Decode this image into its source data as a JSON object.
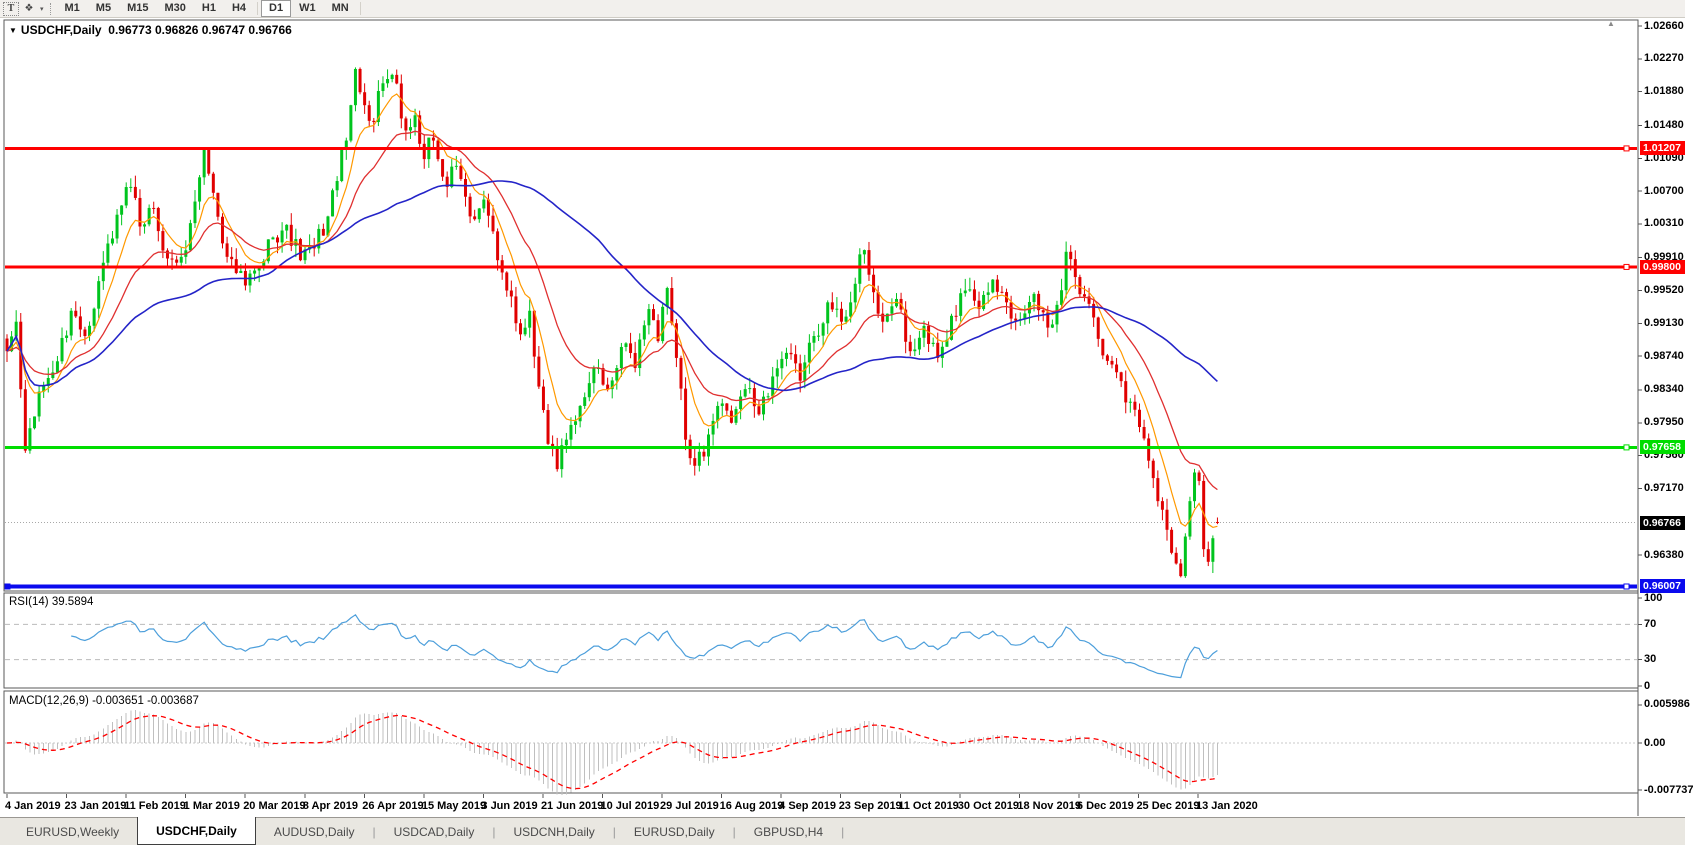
{
  "toolbar": {
    "tools": [
      {
        "name": "text-tool",
        "glyph": "T"
      },
      {
        "name": "styles-tool",
        "glyph": "❖"
      }
    ],
    "timeframes": [
      {
        "label": "M1",
        "active": false
      },
      {
        "label": "M5",
        "active": false
      },
      {
        "label": "M15",
        "active": false
      },
      {
        "label": "M30",
        "active": false
      },
      {
        "label": "H1",
        "active": false
      },
      {
        "label": "H4",
        "active": false
      },
      {
        "label": "D1",
        "active": true
      },
      {
        "label": "W1",
        "active": false
      },
      {
        "label": "MN",
        "active": false
      }
    ]
  },
  "chart": {
    "title_symbol": "USDCHF,Daily",
    "title_ohlc": "0.96773 0.96826 0.96747 0.96766",
    "collapse_glyph": "▼",
    "scroll_up_glyph": "▲"
  },
  "indicators": {
    "rsi_label": "RSI(14) 39.5894",
    "macd_label": "MACD(12,26,9) -0.003651 -0.003687"
  },
  "price_axis": {
    "ticks": [
      {
        "label": "1.02660",
        "value": 1.0266
      },
      {
        "label": "1.02270",
        "value": 1.0227
      },
      {
        "label": "1.01880",
        "value": 1.0188
      },
      {
        "label": "1.01480",
        "value": 1.0148
      },
      {
        "label": "1.01090",
        "value": 1.0109
      },
      {
        "label": "1.00700",
        "value": 1.007
      },
      {
        "label": "1.00310",
        "value": 1.0031
      },
      {
        "label": "0.99910",
        "value": 0.9991
      },
      {
        "label": "0.99520",
        "value": 0.9952
      },
      {
        "label": "0.99130",
        "value": 0.9913
      },
      {
        "label": "0.98740",
        "value": 0.9874
      },
      {
        "label": "0.98340",
        "value": 0.9834
      },
      {
        "label": "0.97950",
        "value": 0.9795
      },
      {
        "label": "0.97560",
        "value": 0.9756
      },
      {
        "label": "0.97170",
        "value": 0.9717
      },
      {
        "label": "0.96380",
        "value": 0.9638
      }
    ],
    "special_labels": [
      {
        "label": "1.01207",
        "value": 1.01207,
        "bg": "#FF0000",
        "fg": "#FFFFFF"
      },
      {
        "label": "0.99800",
        "value": 0.998,
        "bg": "#FF0000",
        "fg": "#FFFFFF"
      },
      {
        "label": "0.97658",
        "value": 0.97658,
        "bg": "#00DD00",
        "fg": "#FFFFFF"
      },
      {
        "label": "0.96766",
        "value": 0.96766,
        "bg": "#000000",
        "fg": "#FFFFFF"
      },
      {
        "label": "0.96007",
        "value": 0.96007,
        "bg": "#0A0AEE",
        "fg": "#FFFFFF"
      }
    ]
  },
  "rsi_axis": [
    {
      "label": "100",
      "value": 100
    },
    {
      "label": "70",
      "value": 70
    },
    {
      "label": "30",
      "value": 30
    },
    {
      "label": "0",
      "value": 0
    }
  ],
  "macd_axis": [
    {
      "label": "0.005986",
      "value": 0.005986
    },
    {
      "label": "0.00",
      "value": 0
    },
    {
      "label": "-0.007737",
      "value": -0.007737
    }
  ],
  "dates": [
    "4 Jan 2019",
    "23 Jan 2019",
    "11 Feb 2019",
    "1 Mar 2019",
    "20 Mar 2019",
    "8 Apr 2019",
    "26 Apr 2019",
    "15 May 2019",
    "3 Jun 2019",
    "21 Jun 2019",
    "10 Jul 2019",
    "29 Jul 2019",
    "16 Aug 2019",
    "4 Sep 2019",
    "23 Sep 2019",
    "11 Oct 2019",
    "30 Oct 2019",
    "18 Nov 2019",
    "6 Dec 2019",
    "25 Dec 2019",
    "13 Jan 2020"
  ],
  "tabs": [
    {
      "label": "EURUSD,Weekly",
      "active": false
    },
    {
      "label": "USDCHF,Daily",
      "active": true
    },
    {
      "label": "AUDUSD,Daily",
      "active": false
    },
    {
      "label": "USDCAD,Daily",
      "active": false
    },
    {
      "label": "USDCNH,Daily",
      "active": false
    },
    {
      "label": "EURUSD,Daily",
      "active": false
    },
    {
      "label": "GBPUSD,H4",
      "active": false
    }
  ],
  "chart_data": {
    "type": "candlestick",
    "symbol": "USDCHF",
    "timeframe": "Daily",
    "current_bar_ohlc": {
      "open": 0.96773,
      "high": 0.96826,
      "low": 0.96747,
      "close": 0.96766
    },
    "bars": 265,
    "y_axis_range": {
      "max": 1.0273,
      "min": 0.9595
    },
    "anchors_close": [
      [
        0,
        0.988
      ],
      [
        2,
        0.9915
      ],
      [
        4,
        0.9762
      ],
      [
        7,
        0.9832
      ],
      [
        11,
        0.9868
      ],
      [
        14,
        0.9928
      ],
      [
        17,
        0.9898
      ],
      [
        21,
        0.9985
      ],
      [
        24,
        1.0042
      ],
      [
        27,
        1.0075
      ],
      [
        29,
        1.0028
      ],
      [
        32,
        1.005
      ],
      [
        35,
        0.999
      ],
      [
        38,
        0.9992
      ],
      [
        40,
        1.0032
      ],
      [
        43,
        1.012
      ],
      [
        45,
        1.0068
      ],
      [
        48,
        0.9992
      ],
      [
        52,
        0.9958
      ],
      [
        55,
        0.998
      ],
      [
        58,
        1.0015
      ],
      [
        61,
        1.003
      ],
      [
        64,
        0.9988
      ],
      [
        67,
        1.0002
      ],
      [
        70,
        1.004
      ],
      [
        72,
        1.0082
      ],
      [
        74,
        1.013
      ],
      [
        76,
        1.0215
      ],
      [
        78,
        1.0172
      ],
      [
        80,
        1.0152
      ],
      [
        82,
        1.0198
      ],
      [
        84,
        1.0208
      ],
      [
        87,
        1.0142
      ],
      [
        89,
        1.016
      ],
      [
        91,
        1.0108
      ],
      [
        93,
        1.013
      ],
      [
        96,
        1.0075
      ],
      [
        98,
        1.01
      ],
      [
        101,
        1.004
      ],
      [
        104,
        1.006
      ],
      [
        107,
        0.9988
      ],
      [
        110,
        0.9945
      ],
      [
        112,
        0.99
      ],
      [
        114,
        0.9928
      ],
      [
        116,
        0.9838
      ],
      [
        118,
        0.977
      ],
      [
        120,
        0.974
      ],
      [
        122,
        0.9775
      ],
      [
        125,
        0.9815
      ],
      [
        128,
        0.986
      ],
      [
        131,
        0.9835
      ],
      [
        134,
        0.9885
      ],
      [
        137,
        0.986
      ],
      [
        140,
        0.993
      ],
      [
        142,
        0.9892
      ],
      [
        144,
        0.9955
      ],
      [
        146,
        0.9872
      ],
      [
        148,
        0.9775
      ],
      [
        150,
        0.9744
      ],
      [
        152,
        0.9755
      ],
      [
        155,
        0.9815
      ],
      [
        158,
        0.9795
      ],
      [
        161,
        0.9835
      ],
      [
        164,
        0.9805
      ],
      [
        167,
        0.985
      ],
      [
        170,
        0.9878
      ],
      [
        173,
        0.9845
      ],
      [
        176,
        0.9898
      ],
      [
        179,
        0.9938
      ],
      [
        182,
        0.9915
      ],
      [
        185,
        0.996
      ],
      [
        187,
        1.0
      ],
      [
        189,
        0.995
      ],
      [
        191,
        0.9915
      ],
      [
        194,
        0.9942
      ],
      [
        197,
        0.988
      ],
      [
        200,
        0.991
      ],
      [
        203,
        0.9872
      ],
      [
        206,
        0.9922
      ],
      [
        209,
        0.9952
      ],
      [
        212,
        0.993
      ],
      [
        215,
        0.9965
      ],
      [
        218,
        0.9938
      ],
      [
        221,
        0.9918
      ],
      [
        224,
        0.9948
      ],
      [
        227,
        0.9908
      ],
      [
        229,
        0.9935
      ],
      [
        231,
        0.9998
      ],
      [
        233,
        0.9968
      ],
      [
        235,
        0.9945
      ],
      [
        237,
        0.992
      ],
      [
        239,
        0.9875
      ],
      [
        242,
        0.9855
      ],
      [
        245,
        0.982
      ],
      [
        247,
        0.979
      ],
      [
        249,
        0.975
      ],
      [
        251,
        0.9702
      ],
      [
        253,
        0.9668
      ],
      [
        255,
        0.9628
      ],
      [
        256,
        0.9613
      ],
      [
        257,
        0.966
      ],
      [
        258,
        0.9702
      ],
      [
        259,
        0.9736
      ],
      [
        260,
        0.9726
      ],
      [
        261,
        0.9645
      ],
      [
        262,
        0.963
      ],
      [
        263,
        0.9658
      ],
      [
        264,
        0.96766
      ]
    ],
    "hlines": [
      {
        "value": 1.01207,
        "color": "#FF0000",
        "width": 3
      },
      {
        "value": 0.998,
        "color": "#FF0000",
        "width": 3
      },
      {
        "value": 0.97658,
        "color": "#00DD00",
        "width": 3
      },
      {
        "value": 0.96007,
        "color": "#0A0AEE",
        "width": 4
      }
    ],
    "current_price_line": {
      "value": 0.96766,
      "color": "#A8A8A8",
      "style": "dotted"
    },
    "moving_averages": [
      {
        "name": "fast-ma",
        "period": 8,
        "method": "ema",
        "color": "#FF9900",
        "width": 1.2
      },
      {
        "name": "medium-ma",
        "period": 21,
        "method": "ema",
        "color": "#E03030",
        "width": 1.3
      },
      {
        "name": "slow-ma",
        "period": 55,
        "method": "sma",
        "color": "#2424C8",
        "width": 1.6
      }
    ],
    "rsi": {
      "period": 14,
      "current_value": 39.5894,
      "levels": [
        70,
        30
      ],
      "color": "#4D9FDB",
      "range": [
        0,
        100
      ]
    },
    "macd": {
      "fast": 12,
      "slow": 26,
      "signal": 9,
      "macd_value": -0.003651,
      "signal_value": -0.003687,
      "histogram_color": "#BFBFBF",
      "signal_color": "#FF0000",
      "range": [
        -0.007737,
        0.005986
      ]
    },
    "candle_up_color": "#00C41E",
    "candle_down_color": "#E00000",
    "noise_seed": 1234567,
    "noise_amp": 0.003,
    "wick_amp": 0.0014
  }
}
